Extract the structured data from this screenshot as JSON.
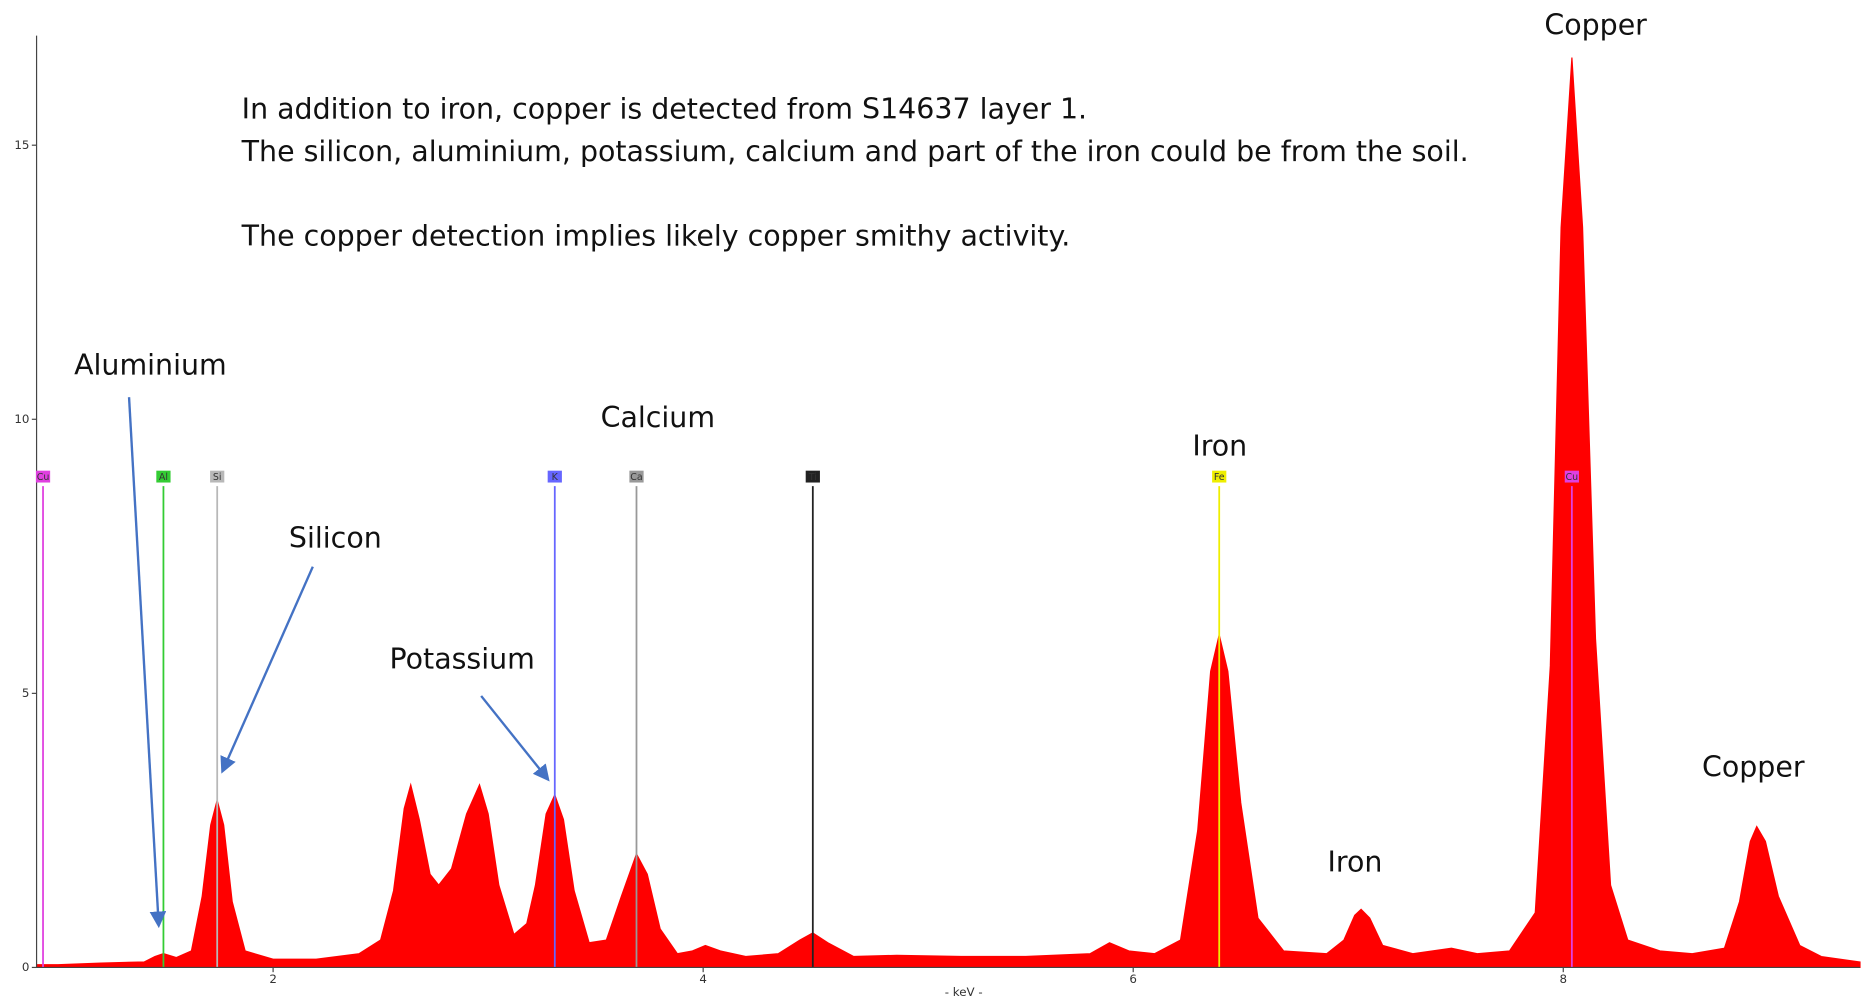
{
  "chart_data": {
    "type": "area",
    "xlabel": "- keV -",
    "color": "#ff0000",
    "xlim": [
      0.9,
      9.38
    ],
    "xticks": [
      2,
      4,
      6,
      8
    ],
    "ylim": [
      0,
      17
    ],
    "yticks": [
      0,
      5,
      10,
      15
    ],
    "x": [
      0.9,
      1.0,
      1.2,
      1.4,
      1.45,
      1.49,
      1.55,
      1.62,
      1.67,
      1.71,
      1.74,
      1.77,
      1.81,
      1.87,
      2.0,
      2.2,
      2.4,
      2.5,
      2.56,
      2.61,
      2.64,
      2.68,
      2.73,
      2.77,
      2.83,
      2.9,
      2.96,
      3.0,
      3.05,
      3.12,
      3.18,
      3.22,
      3.27,
      3.31,
      3.35,
      3.4,
      3.47,
      3.55,
      3.62,
      3.69,
      3.74,
      3.8,
      3.88,
      3.95,
      4.01,
      4.08,
      4.2,
      4.35,
      4.45,
      4.51,
      4.58,
      4.7,
      4.9,
      5.2,
      5.5,
      5.8,
      5.89,
      5.98,
      6.1,
      6.22,
      6.3,
      6.36,
      6.4,
      6.44,
      6.5,
      6.58,
      6.7,
      6.9,
      6.98,
      7.03,
      7.06,
      7.1,
      7.16,
      7.3,
      7.48,
      7.6,
      7.75,
      7.87,
      7.94,
      7.99,
      8.04,
      8.09,
      8.15,
      8.22,
      8.3,
      8.45,
      8.6,
      8.75,
      8.82,
      8.87,
      8.9,
      8.94,
      9.0,
      9.1,
      9.2,
      9.38
    ],
    "values": [
      0.05,
      0.05,
      0.08,
      0.1,
      0.2,
      0.25,
      0.18,
      0.3,
      1.3,
      2.6,
      3.05,
      2.6,
      1.2,
      0.3,
      0.15,
      0.15,
      0.25,
      0.5,
      1.4,
      2.9,
      3.33,
      2.7,
      1.7,
      1.5,
      1.8,
      2.8,
      3.33,
      2.8,
      1.5,
      0.6,
      0.8,
      1.5,
      2.8,
      3.15,
      2.7,
      1.4,
      0.45,
      0.5,
      1.3,
      2.07,
      1.7,
      0.7,
      0.25,
      0.3,
      0.4,
      0.3,
      0.2,
      0.25,
      0.5,
      0.63,
      0.45,
      0.2,
      0.22,
      0.2,
      0.2,
      0.25,
      0.45,
      0.3,
      0.25,
      0.5,
      2.5,
      5.4,
      6.07,
      5.4,
      3.0,
      0.9,
      0.3,
      0.25,
      0.5,
      0.95,
      1.06,
      0.9,
      0.4,
      0.25,
      0.35,
      0.25,
      0.3,
      1.0,
      5.5,
      13.5,
      16.6,
      13.5,
      6,
      1.5,
      0.5,
      0.3,
      0.25,
      0.35,
      1.2,
      2.3,
      2.57,
      2.3,
      1.3,
      0.4,
      0.2,
      0.1
    ],
    "markers": [
      {
        "label": "Cu",
        "x": 0.93,
        "color": "#e040e0"
      },
      {
        "label": "Al",
        "x": 1.49,
        "color": "#33cc33"
      },
      {
        "label": "Si",
        "x": 1.74,
        "color": "#b8b8b8"
      },
      {
        "label": "K",
        "x": 3.31,
        "color": "#6666ff"
      },
      {
        "label": "Ca",
        "x": 3.69,
        "color": "#999999"
      },
      {
        "label": "Ti",
        "x": 4.51,
        "color": "#222222"
      },
      {
        "label": "Fe",
        "x": 6.4,
        "color": "#eeee00"
      },
      {
        "label": "Cu",
        "x": 8.04,
        "color": "#e040e0"
      }
    ],
    "notes": [
      "In addition to iron, copper is detected from S14637 layer 1.",
      "The silicon, aluminium, potassium, calcium and part of the iron could be from the soil.",
      "The copper detection implies likely copper smithy activity."
    ],
    "annotations": [
      "Aluminium",
      "Silicon",
      "Potassium",
      "Calcium",
      "Iron",
      "Iron",
      "Copper",
      "Copper"
    ]
  }
}
